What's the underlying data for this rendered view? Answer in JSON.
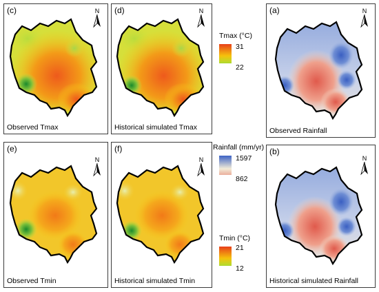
{
  "panels": {
    "c": {
      "letter": "(c)",
      "caption": "Observed Tmax"
    },
    "d": {
      "letter": "(d)",
      "caption": "Historical simulated Tmax"
    },
    "a": {
      "letter": "(a)",
      "caption": "Observed Rainfall"
    },
    "e": {
      "letter": "(e)",
      "caption": "Observed Tmin"
    },
    "f": {
      "letter": "(f)",
      "caption": "Historical simulated Tmin"
    },
    "b": {
      "letter": "(b)",
      "caption": "Historical simulated Rainfall"
    }
  },
  "north_label": "N",
  "legends": {
    "tmax": {
      "title": "Tmax (°C)",
      "high": "31",
      "low": "22"
    },
    "rainfall": {
      "title": "Rainfall (mm/yr)",
      "high": "1597",
      "low": "862"
    },
    "tmin": {
      "title": "Tmin (°C)",
      "high": "21",
      "low": "12"
    }
  },
  "colors": {
    "temp_hot": "#e8401a",
    "temp_mid": "#f4c20a",
    "temp_cool": "#c2e04a",
    "temp_cold": "#1e8a2a",
    "rain_high": "#3d63c4",
    "rain_mid": "#f2ecd8",
    "rain_low": "#e36a5a"
  }
}
